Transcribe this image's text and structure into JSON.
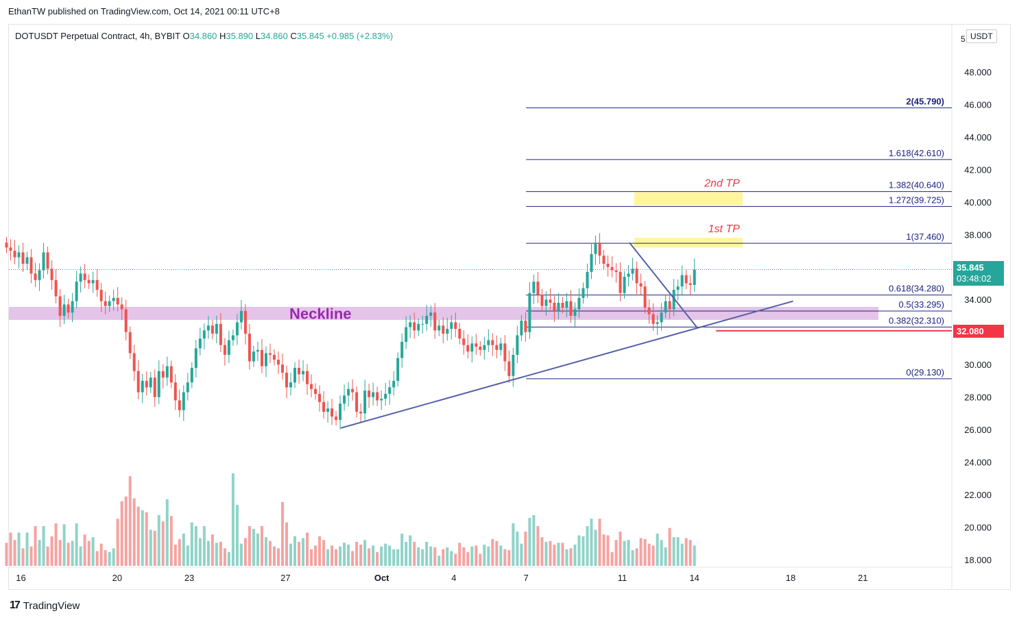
{
  "header": {
    "publisher_line": "EthanTW published on TradingView.com, Oct 14, 2021 00:11 UTC+8"
  },
  "legend": {
    "symbol": "DOTUSDT Perpetual Contract, 4h, BYBIT",
    "open_label": "O",
    "open": "34.860",
    "high_label": "H",
    "high": "35.890",
    "low_label": "L",
    "low": "34.860",
    "close_label": "C",
    "close": "35.845",
    "change": "+0.985 (+2.83%)"
  },
  "axis": {
    "unit": "USDT",
    "unit_partial": "5"
  },
  "branding": {
    "logo_text": "TradingView"
  },
  "colors": {
    "up": "#26a69a",
    "down": "#ef5350",
    "up_volume": "#8fd3c8",
    "down_volume": "#f5a3a1",
    "fib": "#1a237e",
    "trend": "#5460a8",
    "neckline_zone": "#e1bee7",
    "tp_zone": "#fff59d",
    "stop_line": "#f23645",
    "tp_text": "#f23645",
    "neckline_text": "#9c27b0"
  },
  "chart_data": {
    "type": "candlestick",
    "timeframe": "4h",
    "ylim": [
      18,
      51
    ],
    "y_ticks": [
      "18.000",
      "20.000",
      "22.000",
      "24.000",
      "26.000",
      "28.000",
      "30.000",
      "32.000",
      "34.000",
      "36.000",
      "38.000",
      "40.000",
      "42.000",
      "44.000",
      "46.000",
      "48.000"
    ],
    "x_tick_labels": [
      "16",
      "20",
      "23",
      "27",
      "Oct",
      "4",
      "7",
      "11",
      "14",
      "18",
      "21"
    ],
    "x_tick_days": [
      16,
      20,
      23,
      27,
      31,
      34,
      37,
      41,
      44,
      48,
      51
    ],
    "day_range": [
      15.5,
      54.7
    ],
    "current_price": {
      "value": "35.845",
      "countdown": "03:48:02"
    },
    "stop_level": {
      "value": 32.08,
      "label": "32.080"
    },
    "neckline": {
      "label": "Neckline",
      "low": 32.75,
      "high": 33.55
    },
    "fib_levels": [
      {
        "ratio": "2",
        "price": 45.79,
        "label": "2(45.790)"
      },
      {
        "ratio": "1.618",
        "price": 42.61,
        "label": "1.618(42.610)"
      },
      {
        "ratio": "1.382",
        "price": 40.64,
        "label": "1.382(40.640)"
      },
      {
        "ratio": "1.272",
        "price": 39.725,
        "label": "1.272(39.725)"
      },
      {
        "ratio": "1",
        "price": 37.46,
        "label": "1(37.460)"
      },
      {
        "ratio": "0.618",
        "price": 34.28,
        "label": "0.618(34.280)"
      },
      {
        "ratio": "0.5",
        "price": 33.295,
        "label": "0.5(33.295)"
      },
      {
        "ratio": "0.382",
        "price": 32.31,
        "label": "0.382(32.310)"
      },
      {
        "ratio": "0",
        "price": 29.13,
        "label": "0(29.130)"
      }
    ],
    "fib_day_start": 37,
    "take_profits": [
      {
        "label": "1st TP",
        "low": 37.2,
        "high": 37.8,
        "day_start": 41.5,
        "day_end": 46
      },
      {
        "label": "2nd TP",
        "low": 39.8,
        "high": 40.6,
        "day_start": 41.5,
        "day_end": 46
      }
    ],
    "trendlines": [
      {
        "from": [
          29.3,
          26.1
        ],
        "to": [
          48.1,
          33.9
        ]
      },
      {
        "from": [
          41.3,
          37.5
        ],
        "to": [
          44.1,
          32.3
        ]
      }
    ],
    "closes": [
      37.2,
      37.0,
      36.6,
      36.9,
      36.2,
      36.6,
      35.6,
      35.2,
      35.8,
      36.9,
      35.9,
      35.2,
      34.2,
      33.0,
      33.7,
      33.2,
      33.9,
      35.1,
      35.6,
      35.2,
      35.0,
      35.2,
      34.6,
      33.9,
      33.6,
      33.9,
      34.1,
      33.7,
      33.4,
      32.0,
      30.7,
      29.6,
      28.3,
      29.0,
      28.6,
      29.2,
      28.0,
      29.6,
      29.2,
      29.9,
      28.9,
      27.8,
      27.2,
      28.3,
      28.9,
      29.8,
      31.0,
      31.6,
      32.1,
      32.4,
      31.9,
      32.5,
      31.2,
      30.6,
      31.5,
      31.8,
      32.6,
      33.3,
      31.9,
      30.2,
      30.8,
      30.9,
      29.9,
      30.7,
      30.6,
      30.3,
      30.0,
      29.5,
      28.6,
      28.9,
      29.8,
      29.4,
      29.6,
      28.8,
      28.5,
      28.2,
      27.7,
      27.1,
      27.3,
      26.8,
      26.6,
      27.6,
      28.1,
      28.5,
      28.3,
      27.1,
      27.0,
      28.4,
      28.0,
      28.3,
      27.8,
      27.9,
      28.2,
      28.6,
      29.0,
      30.4,
      31.4,
      32.3,
      32.6,
      32.1,
      32.5,
      32.5,
      33.0,
      33.2,
      32.1,
      32.4,
      31.9,
      32.2,
      32.6,
      32.2,
      31.6,
      31.2,
      30.8,
      31.3,
      31.1,
      30.9,
      31.2,
      31.5,
      31.2,
      30.9,
      31.3,
      30.2,
      29.3,
      30.6,
      31.8,
      32.7,
      32.0,
      34.4,
      35.1,
      34.3,
      33.6,
      34.0,
      33.8,
      33.3,
      33.8,
      33.5,
      33.9,
      33.0,
      33.4,
      34.1,
      34.7,
      35.7,
      36.8,
      37.5,
      36.7,
      36.2,
      36.0,
      35.8,
      35.7,
      34.4,
      35.4,
      35.6,
      35.9,
      35.0,
      34.8,
      33.5,
      33.1,
      32.5,
      32.6,
      33.2,
      33.9,
      33.4,
      34.6,
      34.8,
      35.5,
      35.0,
      34.9,
      35.845
    ],
    "volume_ratios": [
      0.25,
      0.36,
      0.28,
      0.36,
      0.19,
      0.36,
      0.21,
      0.43,
      0.28,
      0.43,
      0.21,
      0.32,
      0.46,
      0.28,
      0.45,
      0.25,
      0.27,
      0.46,
      0.21,
      0.34,
      0.27,
      0.31,
      0.16,
      0.24,
      0.17,
      0.15,
      0.19,
      0.51,
      0.7,
      0.75,
      0.97,
      0.73,
      0.64,
      0.6,
      0.58,
      0.39,
      0.38,
      0.55,
      0.48,
      0.72,
      0.54,
      0.23,
      0.29,
      0.35,
      0.22,
      0.47,
      0.43,
      0.3,
      0.43,
      0.27,
      0.34,
      0.25,
      0.26,
      0.19,
      0.15,
      1.0,
      0.66,
      0.24,
      0.3,
      0.43,
      0.4,
      0.35,
      0.43,
      0.31,
      0.27,
      0.21,
      0.19,
      0.69,
      0.47,
      0.24,
      0.32,
      0.26,
      0.3,
      0.36,
      0.18,
      0.22,
      0.32,
      0.28,
      0.18,
      0.22,
      0.18,
      0.21,
      0.25,
      0.23,
      0.16,
      0.26,
      0.23,
      0.28,
      0.19,
      0.22,
      0.15,
      0.21,
      0.24,
      0.22,
      0.18,
      0.18,
      0.35,
      0.26,
      0.33,
      0.26,
      0.2,
      0.18,
      0.26,
      0.21,
      0.2,
      0.11,
      0.18,
      0.2,
      0.16,
      0.13,
      0.25,
      0.2,
      0.15,
      0.21,
      0.22,
      0.13,
      0.23,
      0.21,
      0.29,
      0.27,
      0.22,
      0.18,
      0.17,
      0.46,
      0.37,
      0.24,
      0.37,
      0.52,
      0.55,
      0.43,
      0.31,
      0.26,
      0.27,
      0.23,
      0.25,
      0.25,
      0.18,
      0.19,
      0.23,
      0.33,
      0.32,
      0.43,
      0.51,
      0.39,
      0.51,
      0.34,
      0.33,
      0.15,
      0.28,
      0.37,
      0.27,
      0.28,
      0.17,
      0.19,
      0.3,
      0.29,
      0.24,
      0.22,
      0.35,
      0.28,
      0.2,
      0.41,
      0.31,
      0.31,
      0.24,
      0.3,
      0.28,
      0.22
    ]
  }
}
